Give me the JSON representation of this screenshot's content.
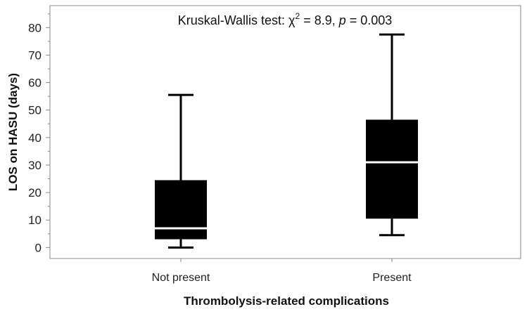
{
  "chart_data": {
    "type": "box",
    "title": "",
    "xlabel": "Thrombolysis-related complications",
    "ylabel": "LOS on HASU (days)",
    "ylim": [
      -4,
      88
    ],
    "yticks": [
      0,
      10,
      20,
      30,
      40,
      50,
      60,
      70,
      80
    ],
    "grid": false,
    "categories": [
      "Not present",
      "Present"
    ],
    "boxes": [
      {
        "category": "Not present",
        "whisker_low": 0,
        "q1": 3,
        "median": 7,
        "q3": 24.5,
        "whisker_high": 55.5
      },
      {
        "category": "Present",
        "whisker_low": 4.5,
        "q1": 10.5,
        "median": 31,
        "q3": 46.5,
        "whisker_high": 77.5
      }
    ],
    "annotation": {
      "prefix": "Kruskal-Wallis test: ",
      "chi_symbol": "χ",
      "chi_exponent": "2",
      "chi_value": " = 8.9, ",
      "p_symbol": "p",
      "p_value": " = 0.003"
    },
    "colors": {
      "box_fill": "#000000",
      "median_line": "#ffffff",
      "axis": "#888888"
    }
  }
}
